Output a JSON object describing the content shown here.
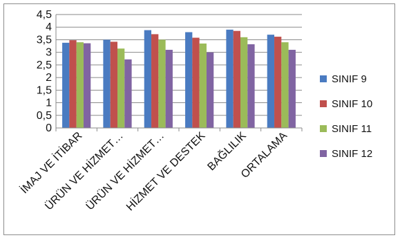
{
  "chart_data": {
    "type": "bar",
    "categories": [
      "İMAJ VE İTİBAR",
      "ÜRÜN VE HİZMET…",
      "ÜRÜN VE HİZMET…",
      "HİZMET VE DESTEK",
      "BAĞLILIK",
      "ORTALAMA"
    ],
    "series": [
      {
        "name": "SINIF 9",
        "color": "#4a7bc1",
        "values": [
          3.38,
          3.5,
          3.88,
          3.8,
          3.9,
          3.7
        ]
      },
      {
        "name": "SINIF 10",
        "color": "#c0504d",
        "values": [
          3.48,
          3.42,
          3.72,
          3.58,
          3.85,
          3.62
        ]
      },
      {
        "name": "SINIF 11",
        "color": "#9bbb59",
        "values": [
          3.4,
          3.15,
          3.5,
          3.35,
          3.6,
          3.4
        ]
      },
      {
        "name": "SINIF 12",
        "color": "#8064a2",
        "values": [
          3.36,
          2.72,
          3.1,
          3.0,
          3.32,
          3.1
        ]
      }
    ],
    "yticks": [
      "0",
      "0,5",
      "1",
      "1,5",
      "2",
      "2,5",
      "3",
      "3,5",
      "4",
      "4,5"
    ],
    "ylim": [
      0,
      4.5
    ],
    "grid": true,
    "legend_position": "right",
    "title": "",
    "xlabel": "",
    "ylabel": ""
  }
}
